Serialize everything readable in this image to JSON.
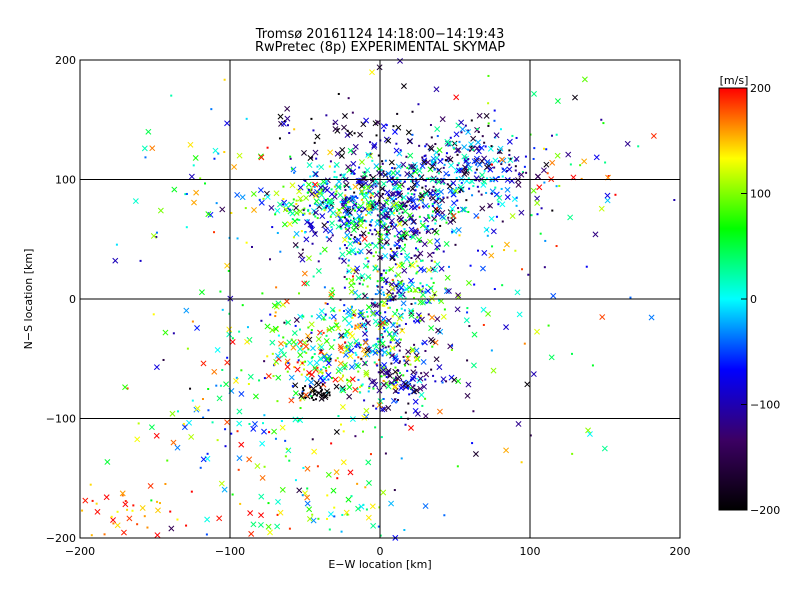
{
  "chart_data": {
    "type": "scatter",
    "title": "Tromsø 20161124 14:18:00−14:19:43",
    "subtitle": "RwPretec (8p) EXPERIMENTAL SKYMAP",
    "xlabel": "E−W location [km]",
    "ylabel": "N−S location [km]",
    "xlim": [
      -200,
      200
    ],
    "ylim": [
      -200,
      200
    ],
    "x_ticks": [
      -200,
      -100,
      0,
      100,
      200
    ],
    "y_ticks": [
      -200,
      -100,
      0,
      100,
      200
    ],
    "x_tick_labels": [
      "−200",
      "−100",
      "0",
      "100",
      "200"
    ],
    "y_tick_labels": [
      "−200",
      "−100",
      "0",
      "100",
      "200"
    ],
    "grid": true,
    "markers": [
      "x",
      "dot"
    ],
    "colorbar": {
      "label": "[m/s]",
      "range": [
        -200,
        200
      ],
      "ticks": [
        200,
        100,
        0,
        -100,
        -200
      ],
      "tick_labels": [
        "200",
        "100",
        "0",
        "−100",
        "−200"
      ],
      "colormap": [
        "#000000",
        "#3c0064",
        "#0000ff",
        "#00ffff",
        "#00ff00",
        "#ffff00",
        "#ff0000"
      ]
    },
    "clusters": [
      {
        "cx": 0,
        "cy": 80,
        "sx": 25,
        "sy": 20,
        "n": 420,
        "vmean": -60,
        "vspread": 140
      },
      {
        "cx": 55,
        "cy": 110,
        "sx": 22,
        "sy": 18,
        "n": 260,
        "vmean": -80,
        "vspread": 120
      },
      {
        "cx": -35,
        "cy": 80,
        "sx": 22,
        "sy": 15,
        "n": 180,
        "vmean": 20,
        "vspread": 140
      },
      {
        "cx": 5,
        "cy": 10,
        "sx": 22,
        "sy": 35,
        "n": 380,
        "vmean": -10,
        "vspread": 150
      },
      {
        "cx": -30,
        "cy": -45,
        "sx": 30,
        "sy": 20,
        "n": 260,
        "vmean": 60,
        "vspread": 140
      },
      {
        "cx": -40,
        "cy": -78,
        "sx": 8,
        "sy": 4,
        "n": 40,
        "vmean": -195,
        "vspread": 10
      },
      {
        "cx": 15,
        "cy": -70,
        "sx": 15,
        "sy": 15,
        "n": 90,
        "vmean": -110,
        "vspread": 70
      },
      {
        "cx": -20,
        "cy": 140,
        "sx": 25,
        "sy": 15,
        "n": 60,
        "vmean": -150,
        "vspread": 80
      },
      {
        "cx": -80,
        "cy": -100,
        "sx": 50,
        "sy": 50,
        "n": 140,
        "vmean": 80,
        "vspread": 150
      },
      {
        "cx": -170,
        "cy": -175,
        "sx": 20,
        "sy": 15,
        "n": 40,
        "vmean": 170,
        "vspread": 40
      },
      {
        "cx": -30,
        "cy": -175,
        "sx": 35,
        "sy": 15,
        "n": 60,
        "vmean": 70,
        "vspread": 120
      },
      {
        "cx": 0,
        "cy": 20,
        "sx": 80,
        "sy": 90,
        "n": 300,
        "vmean": 0,
        "vspread": 200
      },
      {
        "cx": 100,
        "cy": 100,
        "sx": 30,
        "sy": 30,
        "n": 60,
        "vmean": 40,
        "vspread": 180
      },
      {
        "cx": -120,
        "cy": 100,
        "sx": 20,
        "sy": 30,
        "n": 30,
        "vmean": 50,
        "vspread": 150
      }
    ]
  }
}
